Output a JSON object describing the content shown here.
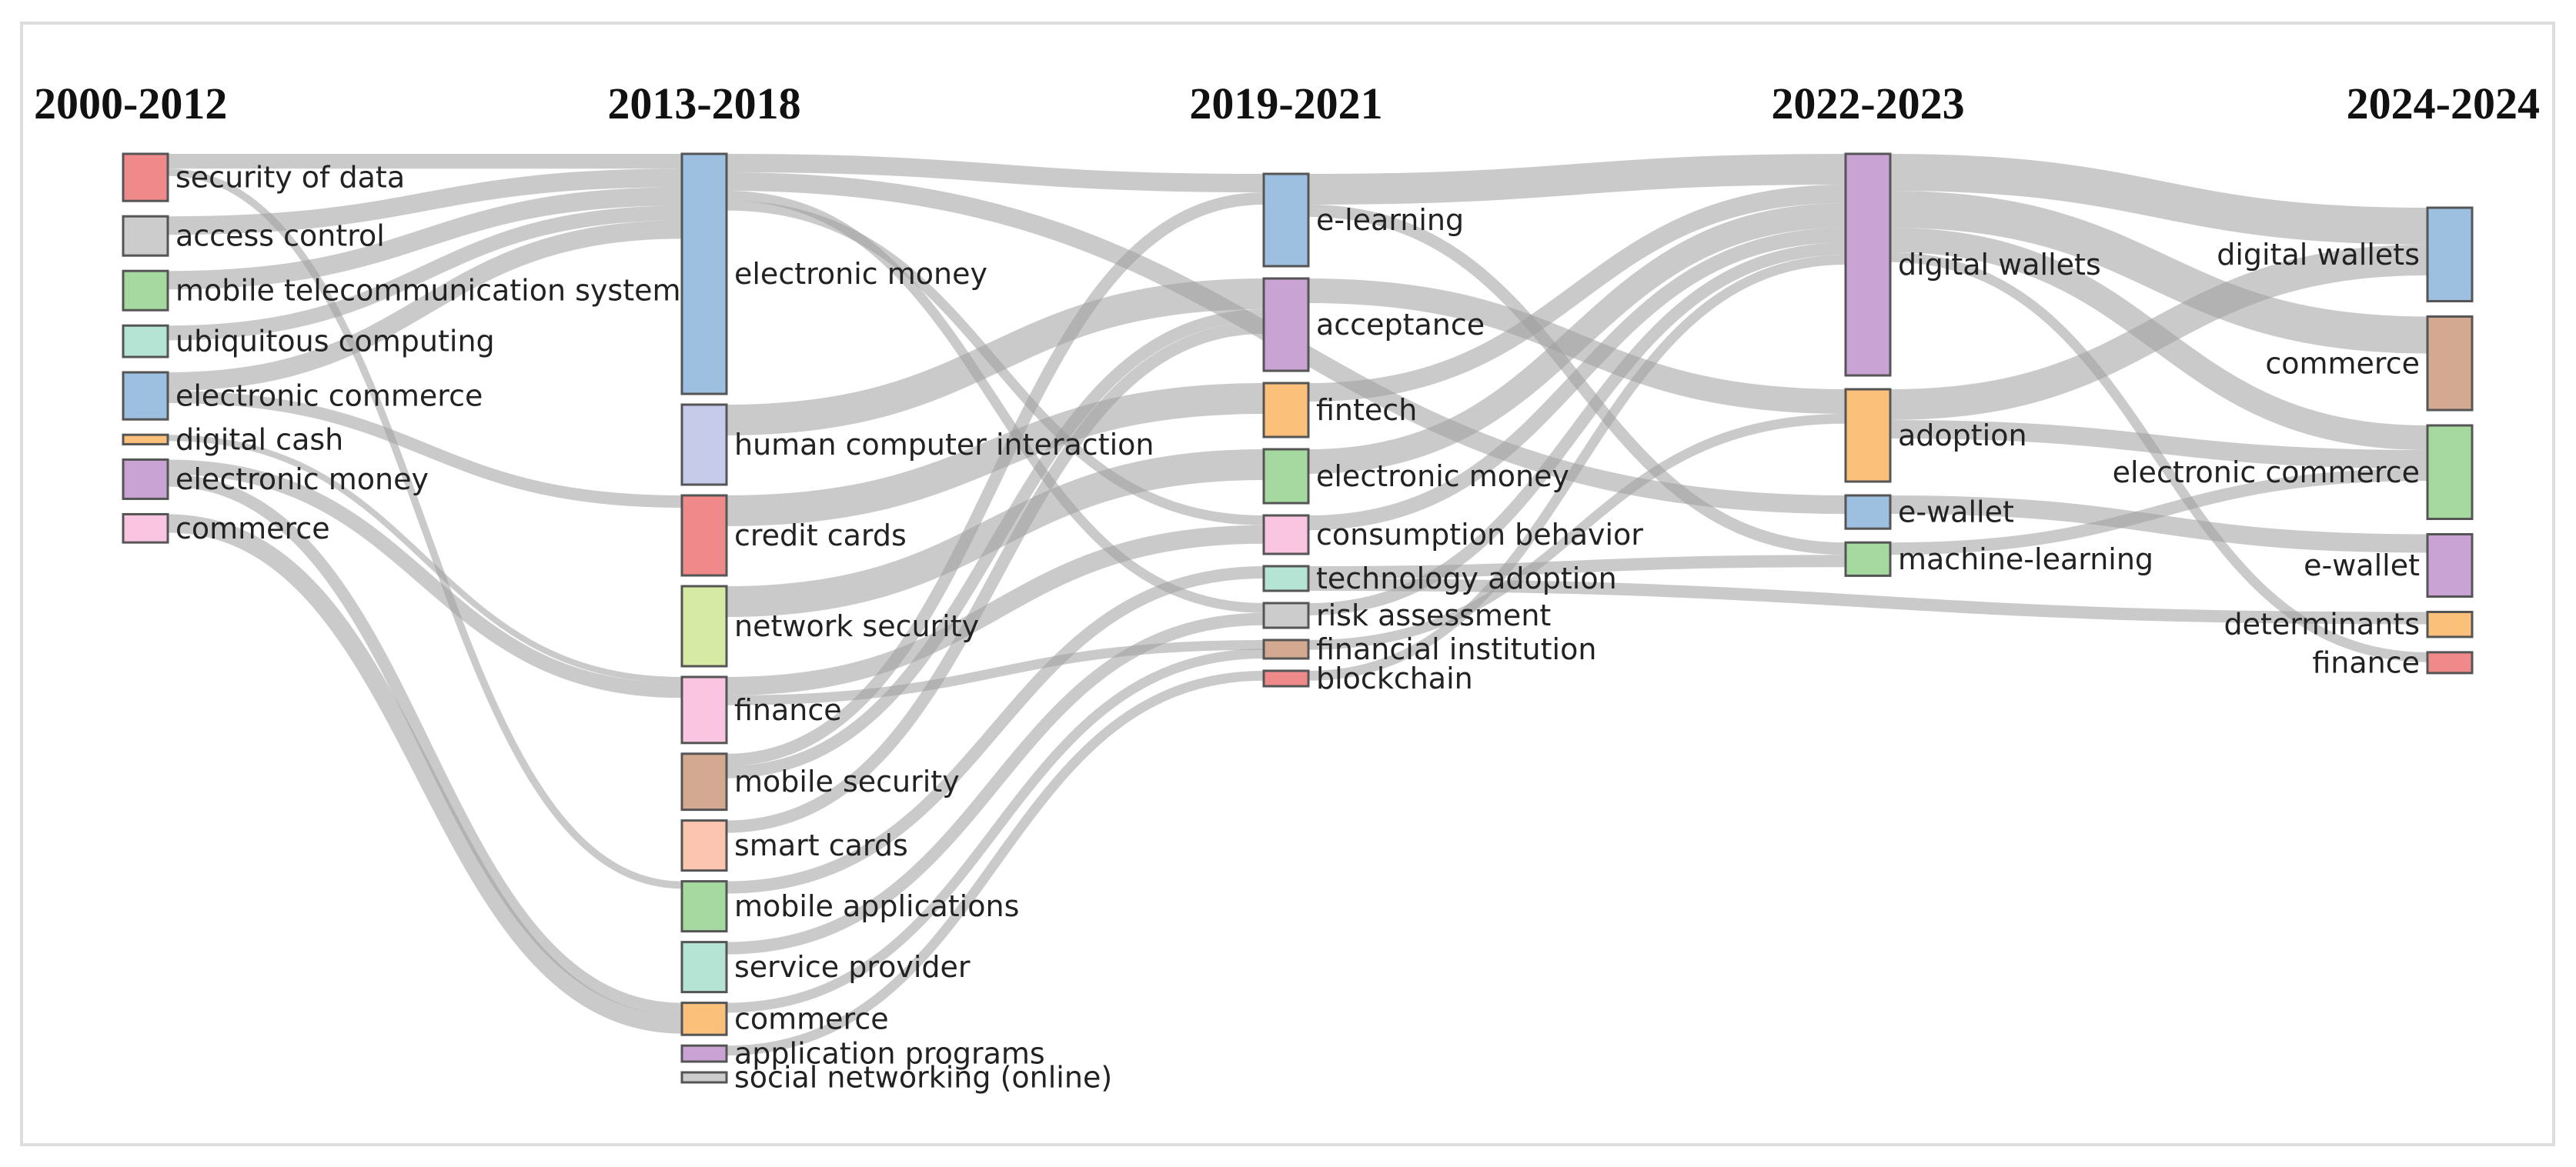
{
  "periods": [
    "2000-2012",
    "2013-2018",
    "2019-2021",
    "2022-2023",
    "2024-2024"
  ],
  "nodes": [
    {
      "id": "a_security",
      "col": 0,
      "label": "security of data",
      "color": "#f08a8a",
      "weight": 3
    },
    {
      "id": "a_access",
      "col": 0,
      "label": "access control",
      "color": "#cccccc",
      "weight": 2.5
    },
    {
      "id": "a_mobtel",
      "col": 0,
      "label": "mobile telecommunication systems",
      "color": "#a6d9a0",
      "weight": 2.5
    },
    {
      "id": "a_ubiq",
      "col": 0,
      "label": "ubiquitous computing",
      "color": "#b5e3d4",
      "weight": 2
    },
    {
      "id": "a_ecom",
      "col": 0,
      "label": "electronic commerce",
      "color": "#9dbfe0",
      "weight": 3
    },
    {
      "id": "a_cash",
      "col": 0,
      "label": "digital cash",
      "color": "#fbc07a",
      "weight": 0.6
    },
    {
      "id": "a_emoney",
      "col": 0,
      "label": "electronic money",
      "color": "#c9a3d3",
      "weight": 2.5
    },
    {
      "id": "a_commerce",
      "col": 0,
      "label": "commerce",
      "color": "#f9c5e0",
      "weight": 1.8
    },
    {
      "id": "b_emoney",
      "col": 1,
      "label": "electronic money",
      "color": "#9dbfe0",
      "weight": 12
    },
    {
      "id": "b_hci",
      "col": 1,
      "label": "human computer interaction",
      "color": "#c5cbe8",
      "weight": 4
    },
    {
      "id": "b_credit",
      "col": 1,
      "label": "credit cards",
      "color": "#f08a8a",
      "weight": 4
    },
    {
      "id": "b_netsec",
      "col": 1,
      "label": "network security",
      "color": "#d6eaa4",
      "weight": 4
    },
    {
      "id": "b_finance",
      "col": 1,
      "label": "finance",
      "color": "#f9c5e0",
      "weight": 3.3
    },
    {
      "id": "b_mobsec",
      "col": 1,
      "label": "mobile security",
      "color": "#d3aa91",
      "weight": 2.8
    },
    {
      "id": "b_smart",
      "col": 1,
      "label": "smart cards",
      "color": "#fbc5b0",
      "weight": 2.5
    },
    {
      "id": "b_mobapp",
      "col": 1,
      "label": "mobile applications",
      "color": "#a6d9a0",
      "weight": 2.5
    },
    {
      "id": "b_service",
      "col": 1,
      "label": "service provider",
      "color": "#b5e3d4",
      "weight": 2.5
    },
    {
      "id": "b_commerce",
      "col": 1,
      "label": "commerce",
      "color": "#fbc07a",
      "weight": 1.6
    },
    {
      "id": "b_apps",
      "col": 1,
      "label": "application programs",
      "color": "#c9a3d3",
      "weight": 0.8
    },
    {
      "id": "b_social",
      "col": 1,
      "label": "social networking (online)",
      "color": "#cccccc",
      "weight": 0.5
    },
    {
      "id": "c_elearn",
      "col": 2,
      "label": "e-learning",
      "color": "#9dbfe0",
      "weight": 6
    },
    {
      "id": "c_accept",
      "col": 2,
      "label": "acceptance",
      "color": "#c9a3d3",
      "weight": 6
    },
    {
      "id": "c_fintech",
      "col": 2,
      "label": "fintech",
      "color": "#fbc07a",
      "weight": 3.5
    },
    {
      "id": "c_emoney",
      "col": 2,
      "label": "electronic money",
      "color": "#a6d9a0",
      "weight": 3.5
    },
    {
      "id": "c_consump",
      "col": 2,
      "label": "consumption behavior",
      "color": "#f9c5e0",
      "weight": 2.5
    },
    {
      "id": "c_techad",
      "col": 2,
      "label": "technology adoption",
      "color": "#b5e3d4",
      "weight": 1.6
    },
    {
      "id": "c_risk",
      "col": 2,
      "label": "risk assessment",
      "color": "#cccccc",
      "weight": 1.6
    },
    {
      "id": "c_fininst",
      "col": 2,
      "label": "financial institution",
      "color": "#d3aa91",
      "weight": 1.2
    },
    {
      "id": "c_block",
      "col": 2,
      "label": "blockchain",
      "color": "#f08a8a",
      "weight": 1
    },
    {
      "id": "d_dw",
      "col": 3,
      "label": "digital wallets",
      "color": "#c9a3d3",
      "weight": 12
    },
    {
      "id": "d_adopt",
      "col": 3,
      "label": "adoption",
      "color": "#fbc07a",
      "weight": 5
    },
    {
      "id": "d_ewallet",
      "col": 3,
      "label": "e-wallet",
      "color": "#9dbfe0",
      "weight": 1.8
    },
    {
      "id": "d_ml",
      "col": 3,
      "label": "machine-learning",
      "color": "#a6d9a0",
      "weight": 1.8
    },
    {
      "id": "e_dw",
      "col": 4,
      "label": "digital wallets",
      "color": "#9dbfe0",
      "weight": 4.5
    },
    {
      "id": "e_commerce",
      "col": 4,
      "label": "commerce",
      "color": "#d3aa91",
      "weight": 4.5
    },
    {
      "id": "e_ecom",
      "col": 4,
      "label": "electronic commerce",
      "color": "#a6d9a0",
      "weight": 4.5
    },
    {
      "id": "e_ewallet",
      "col": 4,
      "label": "e-wallet",
      "color": "#c9a3d3",
      "weight": 3
    },
    {
      "id": "e_determ",
      "col": 4,
      "label": "determinants",
      "color": "#fbc07a",
      "weight": 1.2
    },
    {
      "id": "e_finance",
      "col": 4,
      "label": "finance",
      "color": "#f08a8a",
      "weight": 1
    }
  ],
  "links": [
    {
      "source": "a_security",
      "target": "b_emoney",
      "value": 1.2
    },
    {
      "source": "a_security",
      "target": "b_mobapp",
      "value": 0.6
    },
    {
      "source": "a_access",
      "target": "b_emoney",
      "value": 1.5
    },
    {
      "source": "a_mobtel",
      "target": "b_emoney",
      "value": 1.5
    },
    {
      "source": "a_ubiq",
      "target": "b_emoney",
      "value": 1.2
    },
    {
      "source": "a_ecom",
      "target": "b_emoney",
      "value": 1.5
    },
    {
      "source": "a_ecom",
      "target": "b_credit",
      "value": 1.0
    },
    {
      "source": "a_cash",
      "target": "b_finance",
      "value": 0.5
    },
    {
      "source": "a_emoney",
      "target": "b_finance",
      "value": 1.2
    },
    {
      "source": "a_emoney",
      "target": "b_commerce",
      "value": 1.0
    },
    {
      "source": "a_commerce",
      "target": "b_commerce",
      "value": 1.5
    },
    {
      "source": "b_emoney",
      "target": "c_elearn",
      "value": 1.5
    },
    {
      "source": "b_emoney",
      "target": "d_ewallet",
      "value": 1.5
    },
    {
      "source": "b_emoney",
      "target": "c_risk",
      "value": 0.8
    },
    {
      "source": "b_emoney",
      "target": "c_consump",
      "value": 0.8
    },
    {
      "source": "b_hci",
      "target": "c_accept",
      "value": 2.5
    },
    {
      "source": "b_credit",
      "target": "c_fintech",
      "value": 2.5
    },
    {
      "source": "b_netsec",
      "target": "c_emoney",
      "value": 2.5
    },
    {
      "source": "b_finance",
      "target": "c_consump",
      "value": 1.5
    },
    {
      "source": "b_finance",
      "target": "c_fininst",
      "value": 0.8
    },
    {
      "source": "b_mobsec",
      "target": "c_elearn",
      "value": 1.0
    },
    {
      "source": "b_mobsec",
      "target": "c_accept",
      "value": 1.0
    },
    {
      "source": "b_smart",
      "target": "c_accept",
      "value": 1.0
    },
    {
      "source": "b_mobapp",
      "target": "c_techad",
      "value": 1.0
    },
    {
      "source": "b_service",
      "target": "c_risk",
      "value": 1.0
    },
    {
      "source": "b_commerce",
      "target": "c_fininst",
      "value": 0.8
    },
    {
      "source": "b_apps",
      "target": "c_block",
      "value": 0.8
    },
    {
      "source": "c_elearn",
      "target": "d_dw",
      "value": 2.5
    },
    {
      "source": "c_elearn",
      "target": "d_ml",
      "value": 1.0
    },
    {
      "source": "c_accept",
      "target": "d_adopt",
      "value": 2.0
    },
    {
      "source": "c_fintech",
      "target": "d_dw",
      "value": 1.5
    },
    {
      "source": "c_emoney",
      "target": "d_dw",
      "value": 2.0
    },
    {
      "source": "c_consump",
      "target": "d_dw",
      "value": 1.2
    },
    {
      "source": "c_techad",
      "target": "d_ml",
      "value": 1.0
    },
    {
      "source": "c_techad",
      "target": "e_determ",
      "value": 1.0
    },
    {
      "source": "c_risk",
      "target": "d_dw",
      "value": 1.0
    },
    {
      "source": "c_fininst",
      "target": "d_adopt",
      "value": 0.8
    },
    {
      "source": "c_block",
      "target": "d_dw",
      "value": 0.8
    },
    {
      "source": "d_dw",
      "target": "e_dw",
      "value": 3.0
    },
    {
      "source": "d_dw",
      "target": "e_commerce",
      "value": 3.0
    },
    {
      "source": "d_dw",
      "target": "e_ecom",
      "value": 2.0
    },
    {
      "source": "d_dw",
      "target": "e_finance",
      "value": 0.8
    },
    {
      "source": "d_adopt",
      "target": "e_dw",
      "value": 2.5
    },
    {
      "source": "d_adopt",
      "target": "e_ecom",
      "value": 1.5
    },
    {
      "source": "d_ewallet",
      "target": "e_ewallet",
      "value": 1.5
    },
    {
      "source": "d_ml",
      "target": "e_ecom",
      "value": 1.0
    }
  ]
}
